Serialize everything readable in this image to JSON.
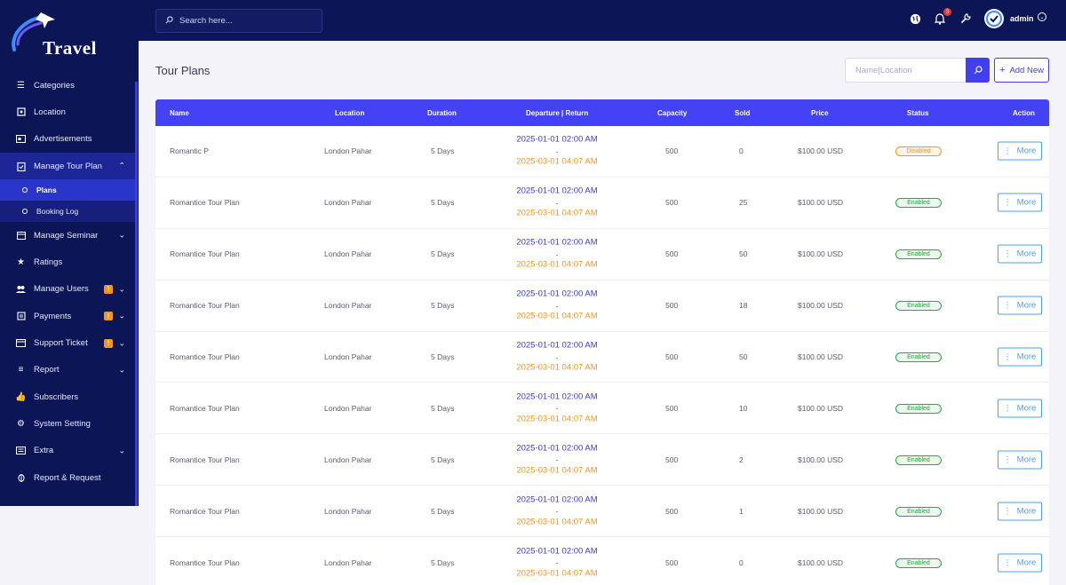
{
  "brand": {
    "logo_text": "Travel"
  },
  "topbar": {
    "search_placeholder": "Search here...",
    "notification_count": "3",
    "user_name": "admin"
  },
  "sidebar": {
    "items": [
      {
        "label": "Categories",
        "icon": "categories-icon"
      },
      {
        "label": "Location",
        "icon": "location-icon"
      },
      {
        "label": "Advertisements",
        "icon": "advertisements-icon"
      },
      {
        "label": "Manage Tour Plan",
        "icon": "clipboard-icon"
      },
      {
        "label": "Manage Seminar",
        "icon": "calendar-icon"
      },
      {
        "label": "Ratings",
        "icon": "star-icon"
      },
      {
        "label": "Manage Users",
        "icon": "users-icon",
        "alert": "!"
      },
      {
        "label": "Payments",
        "icon": "wallet-icon",
        "alert": "!"
      },
      {
        "label": "Support Ticket",
        "icon": "ticket-icon",
        "alert": "!"
      },
      {
        "label": "Report",
        "icon": "report-icon"
      },
      {
        "label": "Subscribers",
        "icon": "subscribers-icon"
      },
      {
        "label": "System Setting",
        "icon": "gear-icon"
      },
      {
        "label": "Extra",
        "icon": "extra-icon"
      },
      {
        "label": "Report & Request",
        "icon": "bug-icon"
      }
    ],
    "sub_items": [
      {
        "label": "Plans"
      },
      {
        "label": "Booking Log"
      }
    ]
  },
  "page": {
    "title": "Tour Plans",
    "filter_placeholder": "Name|Location",
    "add_label": "Add New"
  },
  "table": {
    "headers": [
      "Name",
      "Location",
      "Duration",
      "Departure | Return",
      "Capacity",
      "Sold",
      "Price",
      "Status",
      "Action"
    ],
    "action_label": "More",
    "rows": [
      {
        "name": "Romantic P",
        "location": "London Pahar",
        "duration": "5 Days",
        "departure": "2025-01-01 02:00 AM",
        "sep": "-",
        "return": "2025-03-01 04:07 AM",
        "capacity": "500",
        "sold": "0",
        "price": "$100.00 USD",
        "status": "Disabled"
      },
      {
        "name": "Romantice Tour Plan",
        "location": "London Pahar",
        "duration": "5 Days",
        "departure": "2025-01-01 02:00 AM",
        "sep": "-",
        "return": "2025-03-01 04:07 AM",
        "capacity": "500",
        "sold": "25",
        "price": "$100.00 USD",
        "status": "Enabled"
      },
      {
        "name": "Romantice Tour Plan",
        "location": "London Pahar",
        "duration": "5 Days",
        "departure": "2025-01-01 02:00 AM",
        "sep": "-",
        "return": "2025-03-01 04:07 AM",
        "capacity": "500",
        "sold": "50",
        "price": "$100.00 USD",
        "status": "Enabled"
      },
      {
        "name": "Romantice Tour Plan",
        "location": "London Pahar",
        "duration": "5 Days",
        "departure": "2025-01-01 02:00 AM",
        "sep": "-",
        "return": "2025-03-01 04:07 AM",
        "capacity": "500",
        "sold": "18",
        "price": "$100.00 USD",
        "status": "Enabled"
      },
      {
        "name": "Romantice Tour Plan",
        "location": "London Pahar",
        "duration": "5 Days",
        "departure": "2025-01-01 02:00 AM",
        "sep": "-",
        "return": "2025-03-01 04:07 AM",
        "capacity": "500",
        "sold": "50",
        "price": "$100.00 USD",
        "status": "Enabled"
      },
      {
        "name": "Romantice Tour Plan",
        "location": "London Pahar",
        "duration": "5 Days",
        "departure": "2025-01-01 02:00 AM",
        "sep": "-",
        "return": "2025-03-01 04:07 AM",
        "capacity": "500",
        "sold": "10",
        "price": "$100.00 USD",
        "status": "Enabled"
      },
      {
        "name": "Romantice Tour Plan",
        "location": "London Pahar",
        "duration": "5 Days",
        "departure": "2025-01-01 02:00 AM",
        "sep": "-",
        "return": "2025-03-01 04:07 AM",
        "capacity": "500",
        "sold": "2",
        "price": "$100.00 USD",
        "status": "Enabled"
      },
      {
        "name": "Romantice Tour Plan",
        "location": "London Pahar",
        "duration": "5 Days",
        "departure": "2025-01-01 02:00 AM",
        "sep": "-",
        "return": "2025-03-01 04:07 AM",
        "capacity": "500",
        "sold": "1",
        "price": "$100.00 USD",
        "status": "Enabled"
      },
      {
        "name": "Romantice Tour Plan",
        "location": "London Pahar",
        "duration": "5 Days",
        "departure": "2025-01-01 02:00 AM",
        "sep": "-",
        "return": "2025-03-01 04:07 AM",
        "capacity": "500",
        "sold": "0",
        "price": "$100.00 USD",
        "status": "Enabled"
      }
    ]
  },
  "colors": {
    "sidebar_bg": "#0c1556",
    "accent": "#4343f5",
    "departure": "#3a3ae0",
    "return": "#f7941d",
    "enabled": "#28a745",
    "disabled": "#f7941d"
  }
}
